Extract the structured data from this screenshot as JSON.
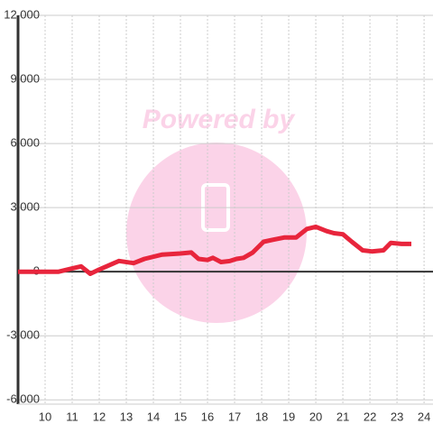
{
  "chart_data": {
    "type": "line",
    "watermark": "Powered by",
    "x": [
      9.0,
      10.5,
      11.0,
      11.33,
      11.67,
      12.0,
      12.73,
      13.27,
      13.67,
      14.33,
      15.0,
      15.4,
      15.67,
      16.0,
      16.2,
      16.5,
      16.83,
      17.07,
      17.33,
      17.67,
      18.07,
      18.43,
      18.83,
      19.27,
      19.67,
      20.0,
      20.4,
      20.67,
      21.0,
      21.33,
      21.73,
      22.07,
      22.5,
      22.77,
      23.17,
      23.53
    ],
    "values": [
      0,
      0,
      150,
      250,
      -100,
      100,
      500,
      400,
      600,
      800,
      850,
      900,
      600,
      550,
      650,
      450,
      500,
      600,
      650,
      900,
      1400,
      1500,
      1600,
      1600,
      2000,
      2100,
      1900,
      1800,
      1750,
      1400,
      1000,
      950,
      1000,
      1350,
      1300,
      1300
    ],
    "color": "#e8253c",
    "xlim": [
      9,
      24.33
    ],
    "xticks": [
      10,
      11,
      12,
      13,
      14,
      15,
      16,
      17,
      18,
      19,
      20,
      21,
      22,
      23,
      24
    ],
    "ylim": [
      -6200,
      12000
    ],
    "yticks": [
      {
        "value": 12000,
        "label": "12,000"
      },
      {
        "value": 9000,
        "label": "9,000"
      },
      {
        "value": 6000,
        "label": "6,000"
      },
      {
        "value": 3000,
        "label": "3,000"
      },
      0,
      {
        "value": -3000,
        "label": "-3,000"
      },
      {
        "value": -6000,
        "label": "-6,000"
      }
    ],
    "grid": true
  }
}
